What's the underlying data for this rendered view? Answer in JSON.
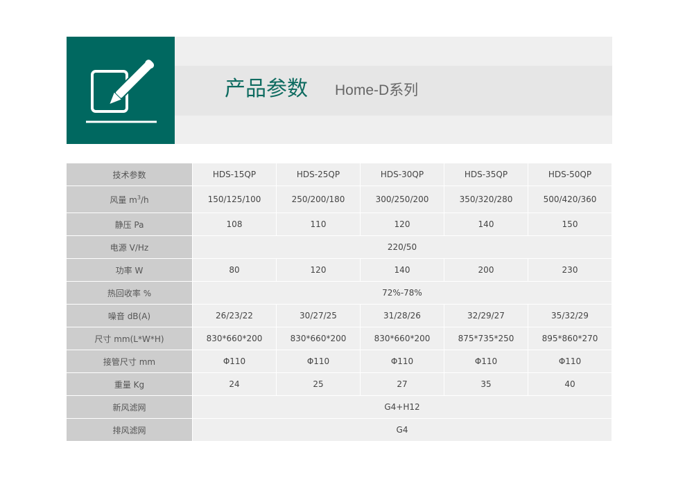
{
  "header": {
    "title": "产品参数",
    "subtitle": "Home-D系列",
    "icon": "pen-on-paper-icon",
    "accent": "#006860"
  },
  "table": {
    "header": {
      "label": "技术参数",
      "models": [
        "HDS-15QP",
        "HDS-25QP",
        "HDS-30QP",
        "HDS-35QP",
        "HDS-50QP"
      ]
    },
    "rows": [
      {
        "label": "风量 m",
        "label_sup": "3",
        "label_suffix": "/h",
        "values": [
          "150/125/100",
          "250/200/180",
          "300/250/200",
          "350/320/280",
          "500/420/360"
        ]
      },
      {
        "label": "静压 Pa",
        "values": [
          "108",
          "110",
          "120",
          "140",
          "150"
        ]
      },
      {
        "label": "电源 V/Hz",
        "merged": "220/50"
      },
      {
        "label": "功率 W",
        "values": [
          "80",
          "120",
          "140",
          "200",
          "230"
        ]
      },
      {
        "label": "热回收率 %",
        "merged": "72%-78%"
      },
      {
        "label": "噪音 dB(A)",
        "values": [
          "26/23/22",
          "30/27/25",
          "31/28/26",
          "32/29/27",
          "35/32/29"
        ]
      },
      {
        "label": "尺寸 mm(L*W*H)",
        "values": [
          "830*660*200",
          "830*660*200",
          "830*660*200",
          "875*735*250",
          "895*860*270"
        ]
      },
      {
        "label": "接管尺寸 mm",
        "values": [
          "Φ110",
          "Φ110",
          "Φ110",
          "Φ110",
          "Φ110"
        ]
      },
      {
        "label": "重量 Kg",
        "values": [
          "24",
          "25",
          "27",
          "35",
          "40"
        ]
      },
      {
        "label": "新风滤网",
        "merged": "G4+H12"
      },
      {
        "label": "排风滤网",
        "merged": "G4"
      }
    ]
  }
}
